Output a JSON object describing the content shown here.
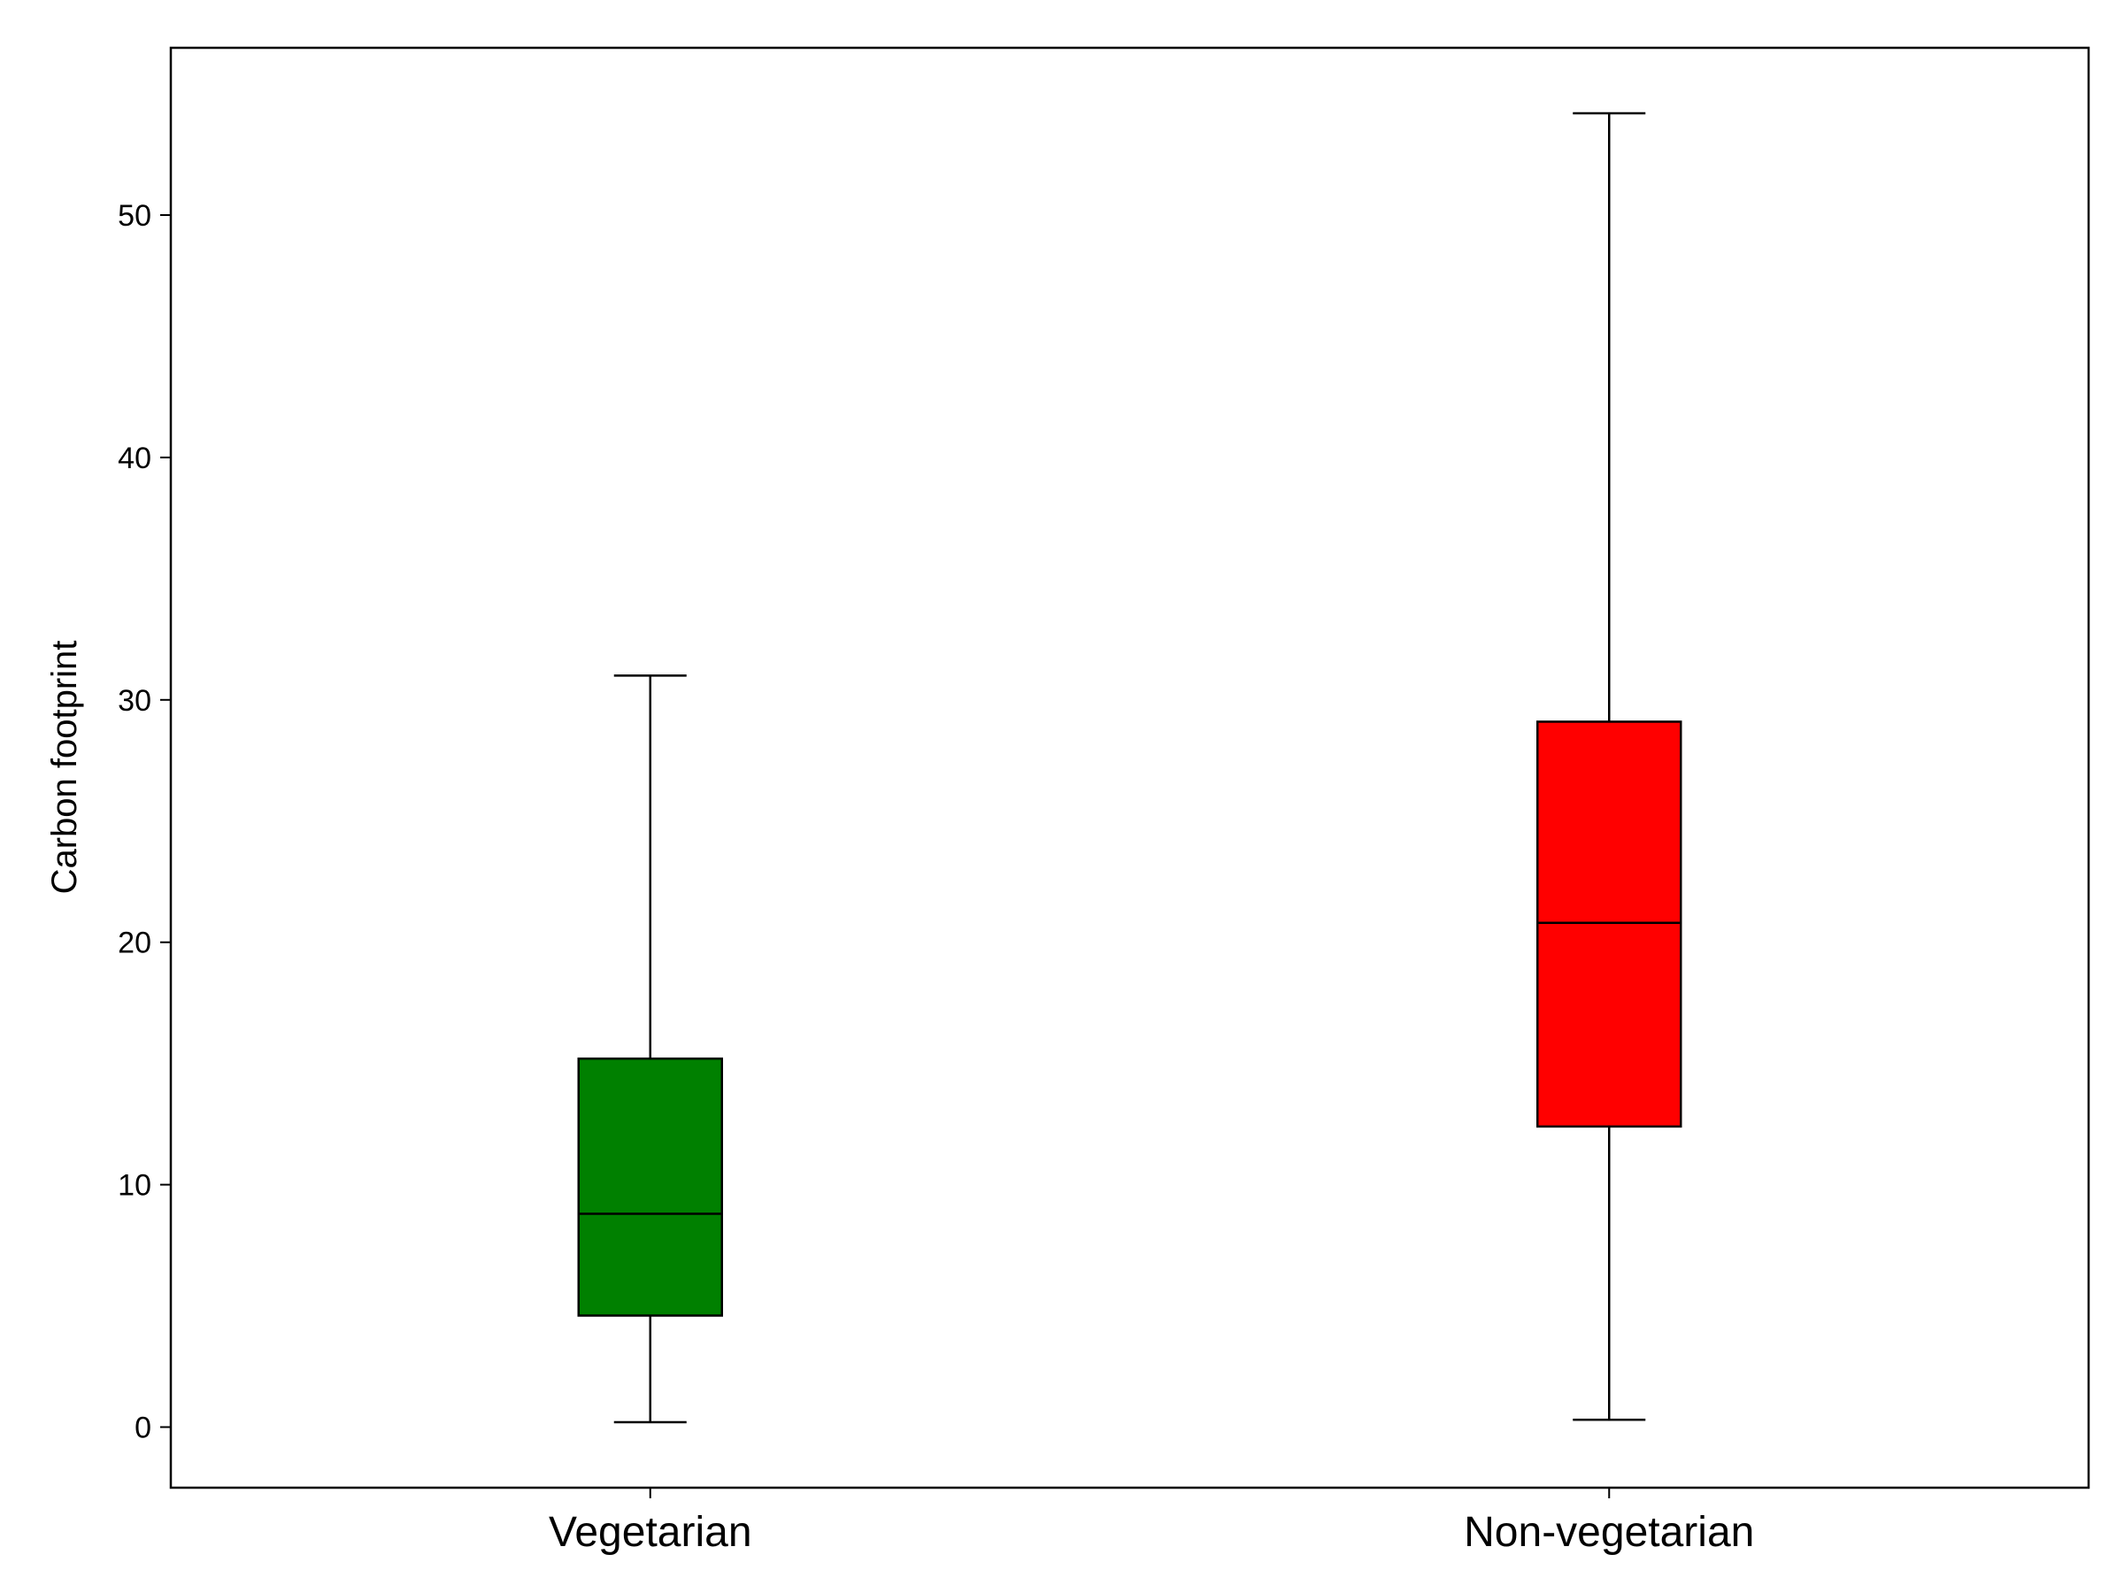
{
  "chart_data": {
    "type": "boxplot",
    "title": "",
    "xlabel": "",
    "ylabel": "Carbon footprint",
    "ylim": [
      -2.5,
      56.9
    ],
    "yticks": [
      0,
      10,
      20,
      30,
      40,
      50
    ],
    "grid": false,
    "legend": "none",
    "categories": [
      "Vegetarian",
      "Non-vegetarian"
    ],
    "boxes": [
      {
        "category": "Vegetarian",
        "whislo": 0.2,
        "q1": 4.6,
        "med": 8.8,
        "q3": 15.2,
        "whishi": 31.0,
        "color": "#008000"
      },
      {
        "category": "Non-vegetarian",
        "whislo": 0.3,
        "q1": 12.4,
        "med": 20.8,
        "q3": 29.1,
        "whishi": 54.2,
        "color": "#ff0000"
      }
    ]
  }
}
